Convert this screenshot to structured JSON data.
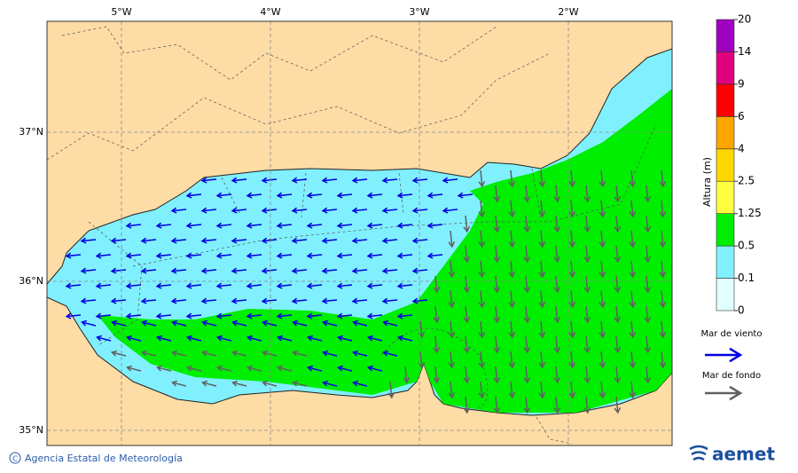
{
  "map": {
    "lon_labels": [
      "5°W",
      "4°W",
      "3°W",
      "2°W"
    ],
    "lat_labels": [
      "37°N",
      "36°N",
      "35°N"
    ]
  },
  "legend": {
    "title": "Altura (m)",
    "levels": [
      0,
      0.1,
      0.5,
      1.25,
      2.5,
      4,
      6,
      9,
      14,
      20
    ],
    "colors": [
      "#e0ffff",
      "#80f0ff",
      "#00ee00",
      "#ffff40",
      "#ffd700",
      "#ffa500",
      "#ff0000",
      "#e0007f",
      "#a000c0"
    ],
    "wind_sea": "Mar de viento",
    "swell": "Mar de fondo",
    "wind_color": "#0000e0",
    "swell_color": "#606060"
  },
  "footer": {
    "credit": "Agencia Estatal de Meteorología",
    "logo": "aemet"
  }
}
